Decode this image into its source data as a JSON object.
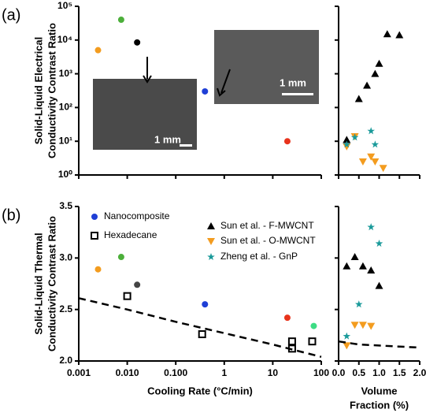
{
  "chart_data": [
    {
      "type": "scatter",
      "panel_label": "(a)",
      "y_label": [
        "Solid-Liquid Electrical",
        "Conductivity Contrast Ratio"
      ],
      "xlog": true,
      "ylog": true,
      "xlim": [
        0.001,
        100
      ],
      "ylim": [
        1,
        100000
      ],
      "xticks": [
        0.001,
        0.01,
        0.1,
        1,
        10,
        100
      ],
      "show_xtick_labels": false,
      "yticks": [
        {
          "value": 1,
          "label": "10⁰"
        },
        {
          "value": 10,
          "label": "10¹"
        },
        {
          "value": 100,
          "label": "10²"
        },
        {
          "value": 1000,
          "label": "10³"
        },
        {
          "value": 10000,
          "label": "10⁴"
        },
        {
          "value": 100000,
          "label": "10⁵"
        }
      ],
      "show_ytick_labels": true,
      "annotations": [
        "1 mm",
        "1 mm"
      ],
      "series": [
        {
          "marker": "circle",
          "colors": [
            "#f39c1f",
            "#4caf3a",
            "#000000",
            "#1f3fd6",
            "#e8331c"
          ],
          "x": [
            0.0025,
            0.0075,
            0.016,
            0.4,
            20
          ],
          "values": [
            5000,
            40000,
            8500,
            300,
            10
          ]
        }
      ]
    },
    {
      "type": "scatter",
      "xlog": false,
      "ylog": true,
      "xlim": [
        0,
        2
      ],
      "ylim": [
        1,
        100000
      ],
      "xticks": [
        0,
        0.5,
        1,
        1.5,
        2
      ],
      "show_xtick_labels": false,
      "yticks": [
        1,
        10,
        100,
        1000,
        10000,
        100000
      ],
      "show_ytick_labels": false,
      "series": [
        {
          "marker": "triangle-up",
          "color": "#000000",
          "x": [
            0.2,
            0.5,
            0.7,
            0.9,
            1.0,
            1.2,
            1.5
          ],
          "values": [
            11,
            180,
            450,
            1000,
            2000,
            15000,
            14000
          ]
        },
        {
          "marker": "triangle-down",
          "color": "#f39c1f",
          "x": [
            0.2,
            0.4,
            0.6,
            0.8,
            0.9,
            1.1
          ],
          "values": [
            7,
            14,
            2.5,
            3.5,
            2.5,
            1.6
          ]
        },
        {
          "marker": "star",
          "color": "#1a9a9a",
          "x": [
            0.2,
            0.4,
            0.8,
            0.9
          ],
          "values": [
            8,
            13,
            20,
            8
          ]
        }
      ]
    },
    {
      "type": "scatter",
      "panel_label": "(b)",
      "y_label": [
        "Solid-Liquid Thermal",
        "Conductivity Contrast Ratio"
      ],
      "x_label": [
        "Cooling Rate (°C/min)"
      ],
      "xlog": true,
      "ylog": false,
      "xlim": [
        0.001,
        100
      ],
      "ylim": [
        2,
        3.5
      ],
      "xticks": [
        0.001,
        {
          "value": 0.01,
          "label": "0.010"
        },
        {
          "value": 0.1,
          "label": "0.100"
        },
        1,
        10,
        100
      ],
      "show_xtick_labels": true,
      "yticks": [
        {
          "value": 2,
          "label": "2.0"
        },
        2.5,
        {
          "value": 3,
          "label": "3.0"
        },
        3.5
      ],
      "show_ytick_labels": true,
      "series": [
        {
          "name": "Nanocomposite",
          "marker": "circle",
          "color": "#1f3fd6",
          "colors": [
            "#f39c1f",
            "#4caf3a",
            "#444444",
            "#1f3fd6",
            "#e8331c",
            "#3ddc84"
          ],
          "x": [
            0.0025,
            0.0075,
            0.016,
            0.4,
            20,
            70
          ],
          "values": [
            2.89,
            3.01,
            2.74,
            2.55,
            2.42,
            2.34
          ]
        },
        {
          "name": "Hexadecane",
          "marker": "square",
          "color": "#000000",
          "x": [
            0.01,
            0.35,
            25,
            25,
            65
          ],
          "values": [
            2.63,
            2.26,
            2.19,
            2.12,
            2.19
          ]
        },
        {
          "marker": "dashed-line",
          "color": "#000000",
          "x": [
            0.001,
            0.01,
            0.1,
            1,
            10,
            100
          ],
          "values": [
            2.61,
            2.5,
            2.38,
            2.27,
            2.16,
            2.04
          ]
        }
      ]
    },
    {
      "type": "scatter",
      "x_label": [
        "Volume",
        "Fraction (%)"
      ],
      "xlog": false,
      "ylog": false,
      "xlim": [
        0,
        2
      ],
      "ylim": [
        2,
        3.5
      ],
      "xticks": [
        {
          "value": 0,
          "label": "0.0"
        },
        0.5,
        {
          "value": 1,
          "label": "1.0"
        },
        1.5,
        {
          "value": 2,
          "label": "2.0"
        }
      ],
      "show_xtick_labels": true,
      "yticks": [
        2,
        2.5,
        3,
        3.5
      ],
      "show_ytick_labels": false,
      "series": [
        {
          "name": "Sun et al. - F-MWCNT",
          "marker": "triangle-up",
          "color": "#000000",
          "x": [
            0.2,
            0.4,
            0.6,
            0.8,
            1.0
          ],
          "values": [
            2.92,
            3.01,
            2.92,
            2.88,
            2.73
          ]
        },
        {
          "name": "Sun et al. - O-MWCNT",
          "marker": "triangle-down",
          "color": "#f39c1f",
          "x": [
            0.2,
            0.4,
            0.6,
            0.8
          ],
          "values": [
            2.15,
            2.35,
            2.35,
            2.34
          ]
        },
        {
          "name": "Zheng et al. - GnP",
          "marker": "star",
          "color": "#1a9a9a",
          "x": [
            0.2,
            0.5,
            0.8,
            1.0
          ],
          "values": [
            2.24,
            2.55,
            3.3,
            3.14
          ]
        },
        {
          "marker": "dashed-line",
          "color": "#000000",
          "x": [
            0,
            0.5,
            1,
            1.5,
            2
          ],
          "values": [
            2.19,
            2.16,
            2.15,
            2.14,
            2.13
          ]
        }
      ]
    }
  ]
}
